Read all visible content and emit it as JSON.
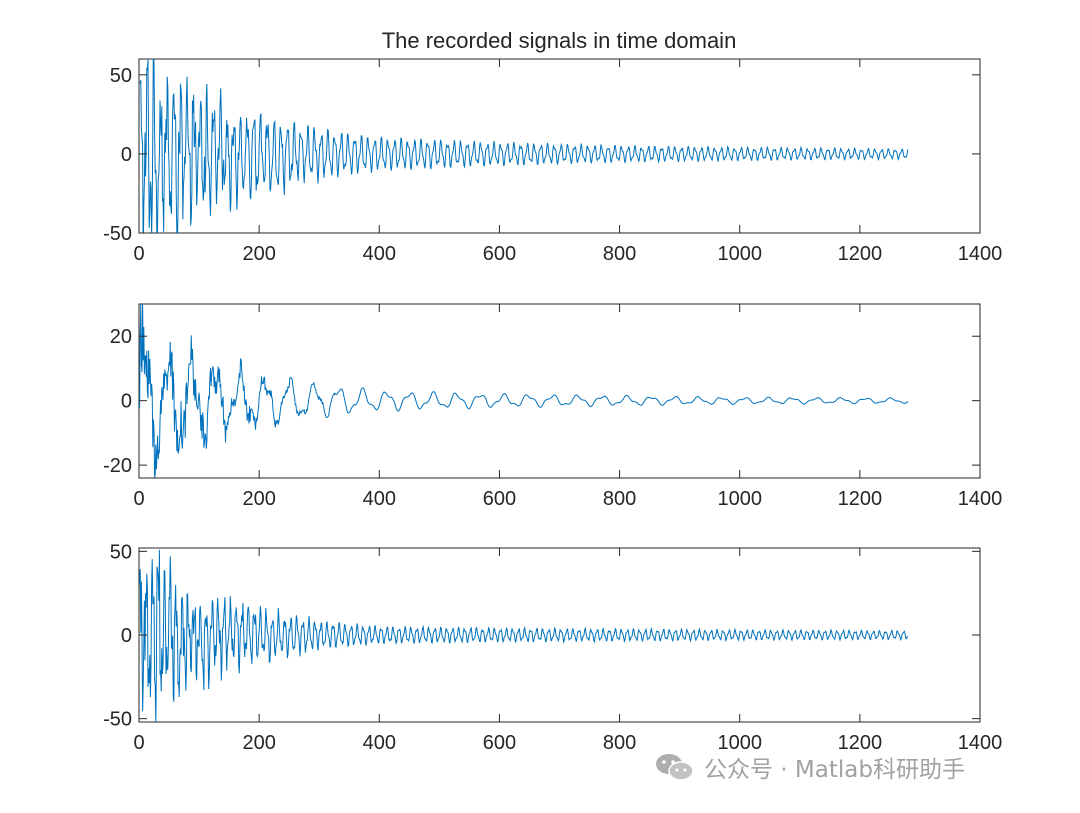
{
  "title": "The recorded signals in time domain",
  "colors": {
    "line": "#0072BD",
    "axes": "#262626",
    "background": "#ffffff",
    "watermark": "#9a9a9a"
  },
  "watermark": {
    "icon": "wechat-icon",
    "text": "公众号 · Matlab科研助手"
  },
  "chart_data": [
    {
      "type": "line",
      "title": "The recorded signals in time domain",
      "xlabel": "",
      "ylabel": "",
      "xlim": [
        0,
        1400
      ],
      "ylim": [
        -50,
        60
      ],
      "xticks": [
        0,
        200,
        400,
        600,
        800,
        1000,
        1200,
        1400
      ],
      "yticks": [
        -50,
        0,
        50
      ],
      "grid": false,
      "legend": "none",
      "series": [
        {
          "x_range": [
            1,
            1280
          ],
          "envelope_x": [
            0,
            50,
            100,
            200,
            300,
            400,
            600,
            800,
            1000,
            1280
          ],
          "envelope_amp": [
            50,
            40,
            32,
            25,
            15,
            10,
            7,
            5,
            4,
            3
          ],
          "dominant_cycles_per_sample": 0.09
        }
      ]
    },
    {
      "type": "line",
      "title": "",
      "xlabel": "",
      "ylabel": "",
      "xlim": [
        0,
        1400
      ],
      "ylim": [
        -24,
        30
      ],
      "xticks": [
        0,
        200,
        400,
        600,
        800,
        1000,
        1200,
        1400
      ],
      "yticks": [
        -20,
        0,
        20
      ],
      "grid": false,
      "legend": "none",
      "series": [
        {
          "x_range": [
            1,
            1280
          ],
          "envelope_x": [
            0,
            50,
            100,
            200,
            300,
            400,
            600,
            800,
            1000,
            1280
          ],
          "envelope_amp": [
            25,
            15,
            12,
            8,
            5,
            3,
            2,
            1.5,
            1,
            0.8
          ],
          "dominant_cycles_per_sample": 0.025
        }
      ]
    },
    {
      "type": "line",
      "title": "",
      "xlabel": "",
      "ylabel": "",
      "xlim": [
        0,
        1400
      ],
      "ylim": [
        -52,
        52
      ],
      "xticks": [
        0,
        200,
        400,
        600,
        800,
        1000,
        1200,
        1400
      ],
      "yticks": [
        -50,
        0,
        50
      ],
      "grid": false,
      "legend": "none",
      "series": [
        {
          "x_range": [
            1,
            1280
          ],
          "envelope_x": [
            0,
            50,
            100,
            200,
            300,
            400,
            600,
            800,
            1000,
            1280
          ],
          "envelope_amp": [
            50,
            35,
            25,
            15,
            8,
            5,
            4,
            3.5,
            3,
            2.5
          ],
          "dominant_cycles_per_sample": 0.1
        }
      ]
    }
  ]
}
